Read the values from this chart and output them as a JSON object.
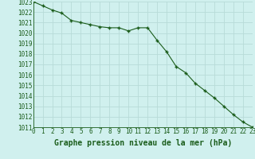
{
  "x": [
    0,
    1,
    2,
    3,
    4,
    5,
    6,
    7,
    8,
    9,
    10,
    11,
    12,
    13,
    14,
    15,
    16,
    17,
    18,
    19,
    20,
    21,
    22,
    23
  ],
  "y": [
    1023.0,
    1022.6,
    1022.2,
    1021.9,
    1021.2,
    1021.0,
    1020.8,
    1020.6,
    1020.5,
    1020.5,
    1020.2,
    1020.5,
    1020.5,
    1019.3,
    1018.2,
    1016.8,
    1016.2,
    1015.2,
    1014.5,
    1013.8,
    1013.0,
    1012.2,
    1011.5,
    1011.0
  ],
  "line_color": "#1a5c1a",
  "marker": "+",
  "marker_size": 3,
  "marker_edge_width": 1.0,
  "bg_color": "#d0f0ee",
  "grid_color": "#b8dbd8",
  "title": "Graphe pression niveau de la mer (hPa)",
  "ylim_min": 1011,
  "ylim_max": 1023,
  "xlim_min": 0,
  "xlim_max": 23,
  "ytick_step": 1,
  "xtick_labels": [
    "0",
    "1",
    "2",
    "3",
    "4",
    "5",
    "6",
    "7",
    "8",
    "9",
    "10",
    "11",
    "12",
    "13",
    "14",
    "15",
    "16",
    "17",
    "18",
    "19",
    "20",
    "21",
    "22",
    "23"
  ],
  "title_fontsize": 7.0,
  "tick_fontsize": 5.5,
  "line_width": 0.8
}
